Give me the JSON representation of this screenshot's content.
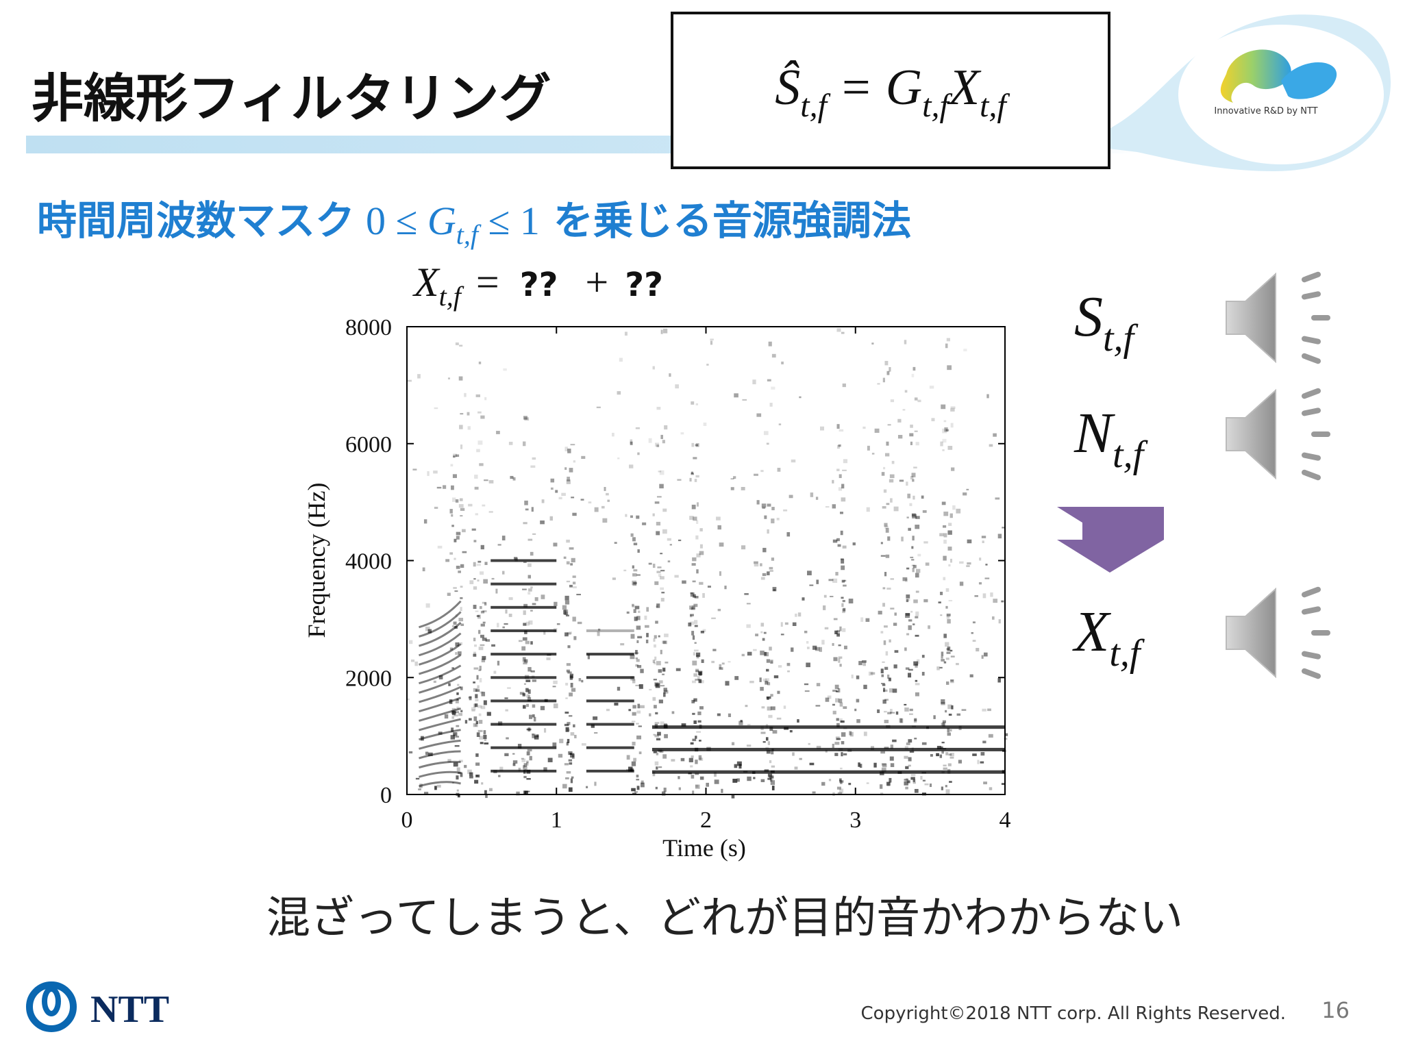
{
  "header": {
    "title": "非線形フィルタリング",
    "formula": {
      "lhs": "Ŝ",
      "lhs_sub": "t,f",
      "eq": "=",
      "g": "G",
      "g_sub": "t,f",
      "x": "X",
      "x_sub": "t,f"
    },
    "logo_caption": "Innovative R&D by NTT"
  },
  "subtitle": {
    "before": "時間周波数マスク",
    "math": "0 ≤ ",
    "g": "G",
    "g_sub": "t,f",
    "math2": " ≤ 1",
    "after": "を乗じる音源強調法"
  },
  "figure": {
    "equation": {
      "x": "X",
      "x_sub": "t,f",
      "eq": "=",
      "a": "??",
      "plus": "+",
      "b": "??"
    },
    "x_label": "Time (s)",
    "y_label": "Frequency (Hz)",
    "xticks": [
      0,
      1,
      2,
      3,
      4
    ],
    "yticks": [
      0,
      2000,
      4000,
      6000,
      8000
    ]
  },
  "signals": [
    {
      "symbol": "S",
      "sub": "t,f"
    },
    {
      "symbol": "N",
      "sub": "t,f"
    },
    {
      "symbol": "X",
      "sub": "t,f"
    }
  ],
  "caption": "混ざってしまうと、どれが目的音かわからない",
  "footer": {
    "brand": "NTT",
    "copyright": "Copyright©2018  NTT corp. All Rights Reserved.",
    "page": "16"
  }
}
